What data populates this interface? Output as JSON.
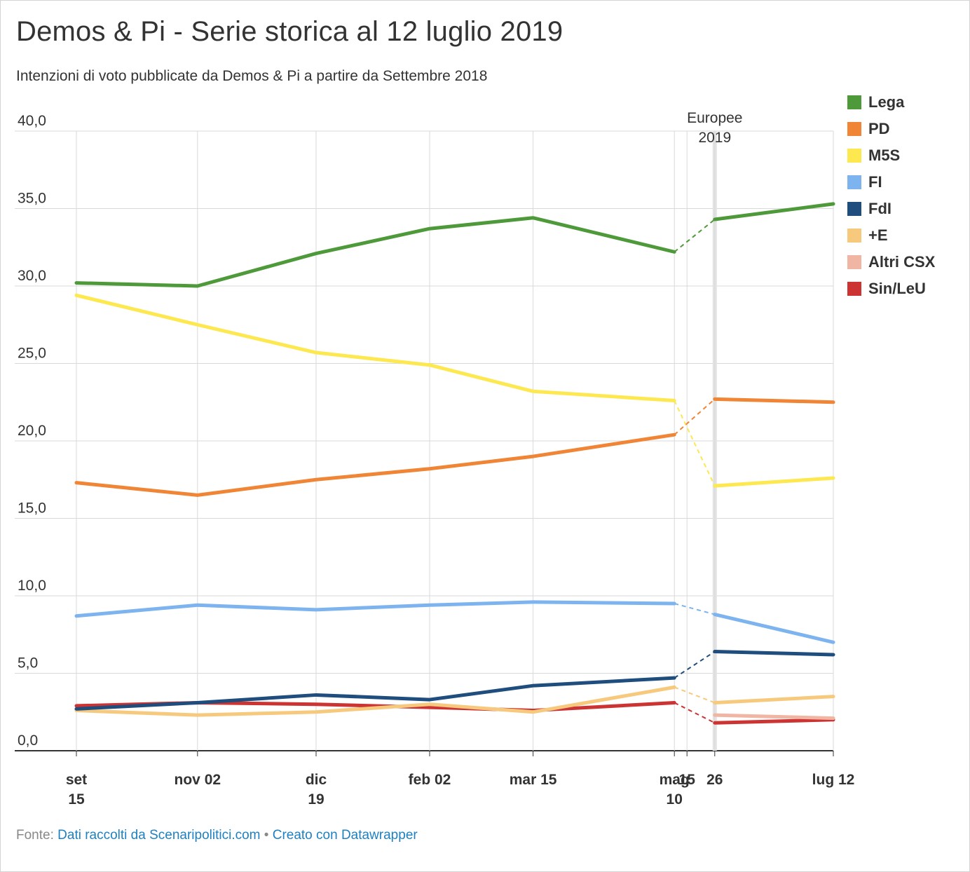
{
  "title": "Demos & Pi - Serie storica al 12 luglio 2019",
  "subtitle": "Intenzioni di voto pubblicate da Demos & Pi a partire da Settembre 2018",
  "footer": {
    "source_prefix": "Fonte:",
    "source_link": "Dati raccolti da Scenaripolitici.com",
    "separator": "•",
    "made_with": "Creato con Datawrapper"
  },
  "chart_data": {
    "type": "line",
    "title": "Demos & Pi - Serie storica al 12 luglio 2019",
    "subtitle": "Intenzioni di voto pubblicate da Demos & Pi a partire da Settembre 2018",
    "x": [
      "2018-09-15",
      "2018-11-02",
      "2018-12-19",
      "2019-02-02",
      "2019-03-15",
      "2019-05-10",
      "2019-05-26",
      "2019-07-12"
    ],
    "x_tick_labels": [
      {
        "date": "2018-09-15",
        "lines": [
          "set",
          "15"
        ]
      },
      {
        "date": "2018-11-02",
        "lines": [
          "nov 02"
        ]
      },
      {
        "date": "2018-12-19",
        "lines": [
          "dic",
          "19"
        ]
      },
      {
        "date": "2019-02-02",
        "lines": [
          "feb 02"
        ]
      },
      {
        "date": "2019-03-15",
        "lines": [
          "mar 15"
        ]
      },
      {
        "date": "2019-05-10",
        "lines": [
          "mag",
          "10"
        ]
      },
      {
        "date": "2019-05-15",
        "lines": [
          "15"
        ]
      },
      {
        "date": "2019-05-26",
        "lines": [
          "26"
        ]
      },
      {
        "date": "2019-07-12",
        "lines": [
          "lug 12"
        ]
      }
    ],
    "y_ticks": [
      "0,0",
      "5,0",
      "10,0",
      "15,0",
      "20,0",
      "25,0",
      "30,0",
      "35,0",
      "40,0"
    ],
    "ylim": [
      0,
      40
    ],
    "grid": true,
    "legend_position": "right",
    "annotation": {
      "date": "2019-05-26",
      "lines": [
        "Europee",
        "2019"
      ]
    },
    "dashed_segment": [
      "2019-05-10",
      "2019-05-26"
    ],
    "series": [
      {
        "name": "Lega",
        "color": "#4e9a3a",
        "values": [
          30.2,
          30.0,
          32.1,
          33.7,
          34.4,
          32.2,
          34.3,
          35.3
        ]
      },
      {
        "name": "PD",
        "color": "#ef8535",
        "values": [
          17.3,
          16.5,
          17.5,
          18.2,
          19.0,
          20.4,
          22.7,
          22.5
        ]
      },
      {
        "name": "M5S",
        "color": "#fde84f",
        "values": [
          29.4,
          27.5,
          25.7,
          24.9,
          23.2,
          22.6,
          17.1,
          17.6
        ]
      },
      {
        "name": "FI",
        "color": "#7db3ee",
        "values": [
          8.7,
          9.4,
          9.1,
          9.4,
          9.6,
          9.5,
          8.8,
          7.0
        ]
      },
      {
        "name": "FdI",
        "color": "#1f4e7e",
        "values": [
          2.7,
          3.1,
          3.6,
          3.3,
          4.2,
          4.7,
          6.4,
          6.2
        ]
      },
      {
        "name": "+E",
        "color": "#f7c97c",
        "values": [
          2.6,
          2.3,
          2.5,
          3.0,
          2.5,
          4.1,
          3.1,
          3.5
        ]
      },
      {
        "name": "Altri CSX",
        "color": "#f1b5a3",
        "values": [
          null,
          null,
          null,
          null,
          null,
          null,
          2.3,
          2.1
        ]
      },
      {
        "name": "Sin/LeU",
        "color": "#cc3333",
        "values": [
          2.9,
          3.1,
          3.0,
          2.8,
          2.6,
          3.1,
          1.8,
          2.0
        ]
      }
    ]
  }
}
